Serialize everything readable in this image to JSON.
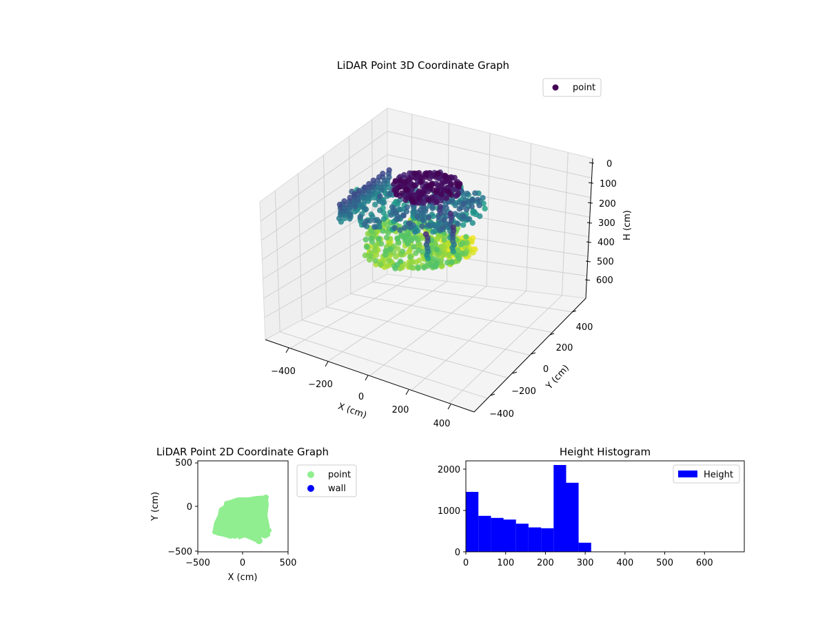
{
  "chart_data": [
    {
      "type": "scatter",
      "subtype": "3d",
      "title": "LiDAR Point 3D Coordinate Graph",
      "xlabel": "X (cm)",
      "ylabel": "Y (cm)",
      "zlabel": "H (cm)",
      "xticks": [
        "−400",
        "−200",
        "0",
        "200",
        "400"
      ],
      "yticks": [
        "−400",
        "−200",
        "0",
        "200",
        "400"
      ],
      "zticks": [
        "0",
        "100",
        "200",
        "300",
        "400",
        "500",
        "600"
      ],
      "xlim": [
        -500,
        500
      ],
      "ylim": [
        -500,
        500
      ],
      "zlim": [
        0,
        690
      ],
      "z_inverted": true,
      "colormap": "viridis",
      "grid": true,
      "legend": {
        "entries": [
          "point"
        ],
        "position": "top-right"
      },
      "point_color_legend": "#440154"
    },
    {
      "type": "scatter",
      "title": "LiDAR Point 2D Coordinate Graph",
      "xlabel": "X (cm)",
      "ylabel": "Y (cm)",
      "xticks": [
        "−500",
        "0",
        "500"
      ],
      "yticks": [
        "500",
        "0",
        "−500"
      ],
      "xlim": [
        -500,
        500
      ],
      "ylim": [
        -500,
        500
      ],
      "series": [
        {
          "name": "point",
          "color": "#90ee90",
          "extent_x": [
            -330,
            290
          ],
          "extent_y": [
            -390,
            130
          ]
        },
        {
          "name": "wall",
          "color": "#0000ff",
          "values": []
        }
      ],
      "legend": {
        "entries": [
          "point",
          "wall"
        ],
        "position": "outside-right"
      }
    },
    {
      "type": "bar",
      "subtype": "histogram",
      "title": "Height Histogram",
      "xticks": [
        "0",
        "100",
        "200",
        "300",
        "400",
        "500",
        "600"
      ],
      "yticks": [
        "0",
        "1000",
        "2000"
      ],
      "xlim": [
        0,
        700
      ],
      "ylim": [
        0,
        2200
      ],
      "color": "#0000ff",
      "bin_width": 31.5,
      "bins_start": [
        0,
        31.5,
        63,
        94.5,
        126,
        157.5,
        189,
        220.5,
        252,
        283.5
      ],
      "values": [
        1450,
        870,
        820,
        780,
        680,
        590,
        570,
        2100,
        1670,
        220
      ],
      "legend": {
        "entries": [
          "Height"
        ],
        "position": "top-right"
      }
    }
  ]
}
